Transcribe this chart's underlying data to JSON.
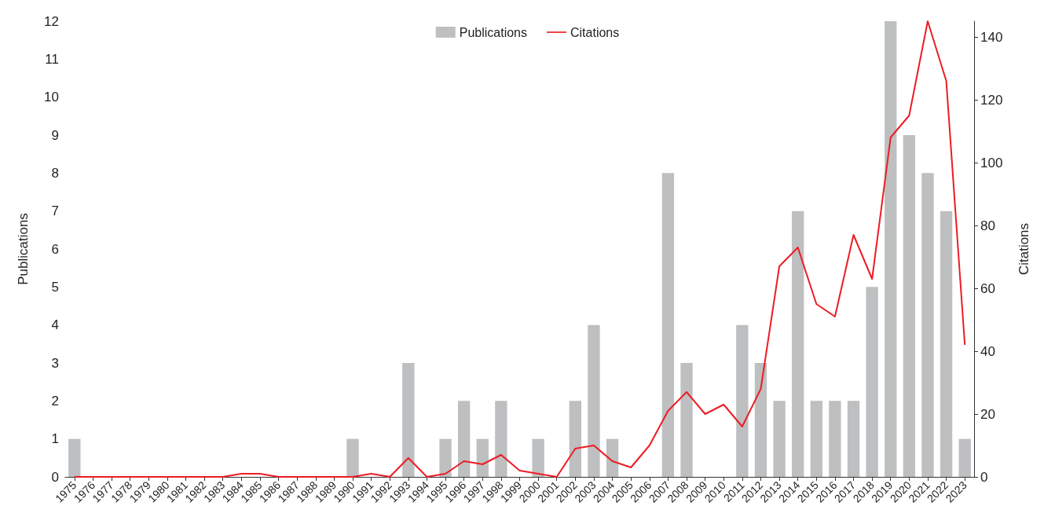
{
  "chart_data": {
    "type": "bar",
    "xlabel": null,
    "ylabel": "Publications",
    "y2label": "Citations",
    "categories": [
      "1975",
      "1976",
      "1977",
      "1978",
      "1979",
      "1980",
      "1981",
      "1982",
      "1983",
      "1984",
      "1985",
      "1986",
      "1987",
      "1988",
      "1989",
      "1990",
      "1991",
      "1992",
      "1993",
      "1994",
      "1995",
      "1996",
      "1997",
      "1998",
      "1999",
      "2000",
      "2001",
      "2002",
      "2003",
      "2004",
      "2005",
      "2006",
      "2007",
      "2008",
      "2009",
      "2010",
      "2011",
      "2012",
      "2013",
      "2014",
      "2015",
      "2016",
      "2017",
      "2018",
      "2019",
      "2020",
      "2021",
      "2022",
      "2023"
    ],
    "series": [
      {
        "name": "Publications",
        "color": "#bebfc1",
        "values": [
          1,
          0,
          0,
          0,
          0,
          0,
          0,
          0,
          0,
          0,
          0,
          0,
          0,
          0,
          0,
          1,
          0,
          0,
          3,
          0,
          1,
          2,
          1,
          2,
          0,
          1,
          0,
          2,
          4,
          1,
          0,
          0,
          8,
          3,
          0,
          0,
          4,
          3,
          2,
          7,
          2,
          2,
          2,
          5,
          12,
          9,
          8,
          7,
          1
        ]
      },
      {
        "name": "Citations",
        "type": "line",
        "axis": "y2",
        "color": "#ed1c24",
        "values": [
          0,
          0,
          0,
          0,
          0,
          0,
          0,
          0,
          0,
          1,
          1,
          0,
          0,
          0,
          0,
          0,
          1,
          0,
          6,
          0,
          1,
          5,
          4,
          7,
          2,
          1,
          0,
          9,
          10,
          5,
          3,
          10,
          21,
          27,
          20,
          23,
          16,
          28,
          67,
          73,
          55,
          51,
          77,
          63,
          108,
          115,
          145,
          126,
          42
        ]
      }
    ],
    "ylim": [
      0,
      12
    ],
    "yticks": [
      0,
      1,
      2,
      3,
      4,
      5,
      6,
      7,
      8,
      9,
      10,
      11,
      12
    ],
    "y2lim": [
      0,
      145
    ],
    "y2ticks": [
      0,
      20,
      40,
      60,
      80,
      100,
      120,
      140
    ],
    "grid": false,
    "legend": "top",
    "marker": "none",
    "line_style": "solid"
  }
}
